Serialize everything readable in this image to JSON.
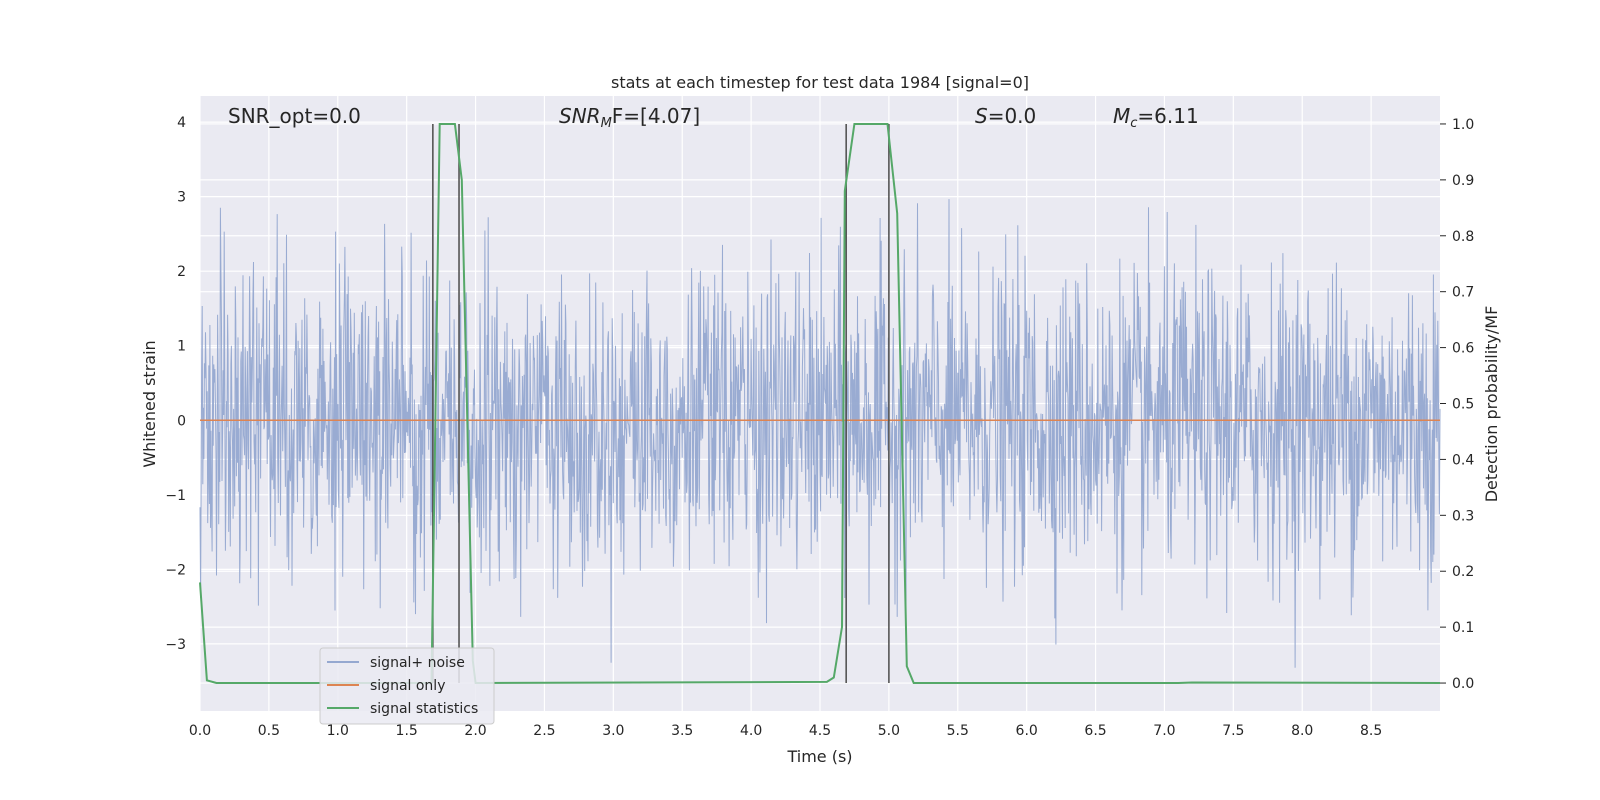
{
  "chart_data": {
    "type": "line",
    "title": "stats at each timestep for test data 1984 [signal=0]",
    "xlabel": "Time (s)",
    "ylabel": "Whitened strain",
    "y2label": "Detection probability/MF",
    "xlim": [
      0,
      9
    ],
    "ylim": [
      -3.9,
      4.35
    ],
    "y2lim": [
      -0.05,
      1.05
    ],
    "x_ticks": [
      "0.0",
      "0.5",
      "1.0",
      "1.5",
      "2.0",
      "2.5",
      "3.0",
      "3.5",
      "4.0",
      "4.5",
      "5.0",
      "5.5",
      "6.0",
      "6.5",
      "7.0",
      "7.5",
      "8.0",
      "8.5"
    ],
    "y_ticks": [
      "4",
      "3",
      "2",
      "1",
      "0",
      "−1",
      "−2",
      "−3"
    ],
    "y2_ticks": [
      "1.0",
      "0.9",
      "0.8",
      "0.7",
      "0.6",
      "0.5",
      "0.4",
      "0.3",
      "0.2",
      "0.1",
      "0.0"
    ],
    "grid": true,
    "legend_placement": "lower-left",
    "annotations": {
      "snr_opt": "SNR_opt=0.0",
      "snr_mf_main": "SNR",
      "snr_mf_sub": "M",
      "snr_mf_rest": "F=[4.07]",
      "s_main": "S",
      "s_rest": "=0.0",
      "mc_main": "M",
      "mc_sub": "c",
      "mc_rest": "=6.11"
    },
    "series": [
      {
        "name": "signal+ noise",
        "color": "#95a8d0",
        "note": "whitened strain noise, roughly zero mean, amplitude up to about ±4",
        "sample_step": 0.004,
        "noise_sigma": 1.0,
        "clip": [
          -3.7,
          4.0
        ]
      },
      {
        "name": "signal only",
        "color": "#dd8452",
        "x": [
          0,
          9
        ],
        "y": [
          0,
          0
        ]
      },
      {
        "name": "signal statistics",
        "color": "#55a868",
        "axis": "right",
        "x": [
          0.0,
          0.05,
          0.12,
          1.68,
          1.74,
          1.85,
          1.9,
          1.98,
          2.0,
          4.55,
          4.6,
          4.66,
          4.68,
          4.75,
          4.99,
          5.06,
          5.13,
          5.18,
          7.1,
          7.2,
          9.0
        ],
        "y": [
          0.18,
          0.005,
          0.0,
          0.0,
          1.0,
          1.0,
          0.9,
          0.04,
          0.0,
          0.002,
          0.01,
          0.1,
          0.88,
          1.0,
          1.0,
          0.84,
          0.03,
          0.0,
          0.0,
          0.001,
          0.0
        ]
      }
    ],
    "vertical_lines": {
      "color": "#555555",
      "x": [
        1.69,
        1.88,
        4.69,
        5.0
      ]
    }
  }
}
